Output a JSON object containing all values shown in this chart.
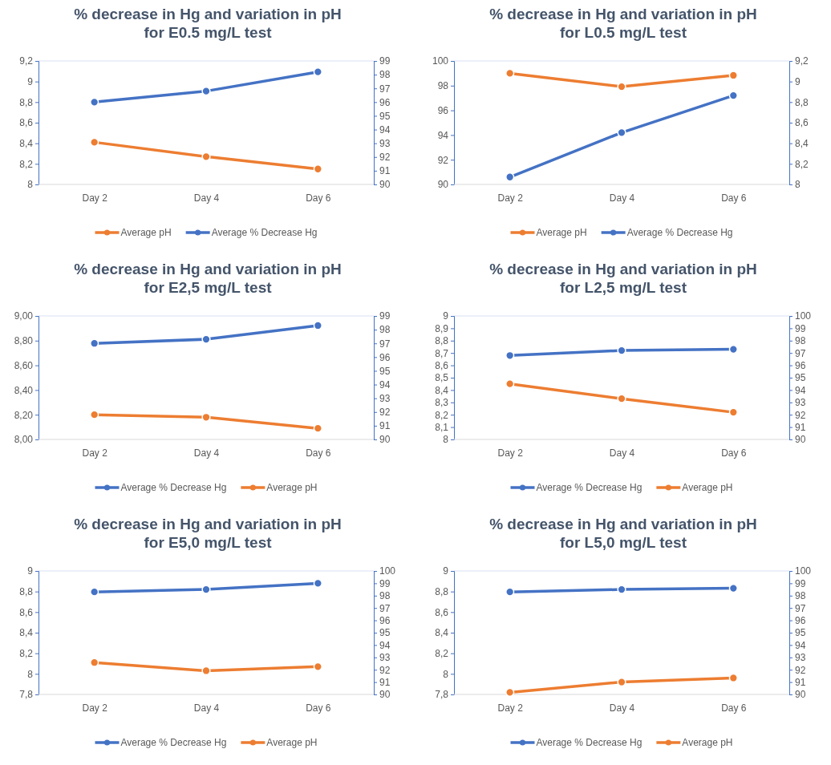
{
  "chart_data": [
    {
      "type": "line",
      "title": "% decrease in Hg and variation in pH\nfor E0.5 mg/L test",
      "categories": [
        "Day 2",
        "Day 4",
        "Day 6"
      ],
      "series": [
        {
          "name": "Average pH",
          "color": "#ed7d31",
          "values": [
            8.41,
            8.27,
            8.15
          ]
        },
        {
          "name": "Average % Decrease Hg",
          "color": "#4472c4",
          "axis": "y2",
          "values": [
            96.0,
            96.8,
            98.2
          ]
        }
      ],
      "ylim": [
        8,
        9.2
      ],
      "yticks": [
        8,
        {
          "value": 8.2,
          "label": "8,2"
        },
        {
          "value": 8.4,
          "label": "8,4"
        },
        {
          "value": 8.6,
          "label": "8,6"
        },
        {
          "value": 8.8,
          "label": "8,8"
        },
        9,
        {
          "value": 9.2,
          "label": "9,2"
        }
      ],
      "y2lim": [
        90,
        99
      ],
      "y2ticks": [
        90,
        91,
        92,
        93,
        94,
        95,
        96,
        97,
        98,
        99
      ],
      "legend": "bottom",
      "marker": "circle",
      "grid": false
    },
    {
      "type": "line",
      "title": "% decrease in Hg and variation in pH\nfor L0.5 mg/L test",
      "categories": [
        "Day 2",
        "Day 4",
        "Day 6"
      ],
      "series": [
        {
          "name": "Average pH",
          "color": "#ed7d31",
          "axis": "y2",
          "values": [
            9.08,
            8.95,
            9.06
          ]
        },
        {
          "name": "Average % Decrease Hg",
          "color": "#4472c4",
          "values": [
            90.6,
            94.2,
            97.2
          ]
        }
      ],
      "ylim": [
        90,
        100
      ],
      "yticks": [
        90,
        92,
        94,
        96,
        98,
        100
      ],
      "y2lim": [
        8,
        9.2
      ],
      "y2ticks": [
        8,
        {
          "value": 8.2,
          "label": "8,2"
        },
        {
          "value": 8.4,
          "label": "8,4"
        },
        {
          "value": 8.6,
          "label": "8,6"
        },
        {
          "value": 8.8,
          "label": "8,8"
        },
        9,
        {
          "value": 9.2,
          "label": "9,2"
        }
      ],
      "legend": "bottom",
      "marker": "circle",
      "grid": false
    },
    {
      "type": "line",
      "title": "% decrease in Hg and variation in pH\nfor E2,5 mg/L test",
      "categories": [
        "Day 2",
        "Day 4",
        "Day 6"
      ],
      "series": [
        {
          "name": "Average % Decrease Hg",
          "color": "#4472c4",
          "axis": "y2",
          "values": [
            97.0,
            97.3,
            98.3
          ]
        },
        {
          "name": "Average pH",
          "color": "#ed7d31",
          "values": [
            8.2,
            8.18,
            8.09
          ]
        }
      ],
      "ylim": [
        8,
        9
      ],
      "yticks": [
        {
          "value": 8,
          "label": "8,00"
        },
        {
          "value": 8.2,
          "label": "8,20"
        },
        {
          "value": 8.4,
          "label": "8,40"
        },
        {
          "value": 8.6,
          "label": "8,60"
        },
        {
          "value": 8.8,
          "label": "8,80"
        },
        {
          "value": 9,
          "label": "9,00"
        }
      ],
      "y2lim": [
        90,
        99
      ],
      "y2ticks": [
        90,
        91,
        92,
        93,
        94,
        95,
        96,
        97,
        98,
        99
      ],
      "legend": "bottom",
      "marker": "circle",
      "grid": false
    },
    {
      "type": "line",
      "title": "% decrease in Hg and variation in pH\nfor L2,5 mg/L test",
      "categories": [
        "Day 2",
        "Day 4",
        "Day 6"
      ],
      "series": [
        {
          "name": "Average % Decrease Hg",
          "color": "#4472c4",
          "axis": "y2",
          "values": [
            96.8,
            97.2,
            97.3
          ]
        },
        {
          "name": "Average pH",
          "color": "#ed7d31",
          "values": [
            8.45,
            8.33,
            8.22
          ]
        }
      ],
      "ylim": [
        8,
        9
      ],
      "yticks": [
        8,
        {
          "value": 8.1,
          "label": "8,1"
        },
        {
          "value": 8.2,
          "label": "8,2"
        },
        {
          "value": 8.3,
          "label": "8,3"
        },
        {
          "value": 8.4,
          "label": "8,4"
        },
        {
          "value": 8.5,
          "label": "8,5"
        },
        {
          "value": 8.6,
          "label": "8,6"
        },
        {
          "value": 8.7,
          "label": "8,7"
        },
        {
          "value": 8.8,
          "label": "8,8"
        },
        {
          "value": 8.9,
          "label": "8,9"
        },
        9
      ],
      "y2lim": [
        90,
        100
      ],
      "y2ticks": [
        90,
        91,
        92,
        93,
        94,
        95,
        96,
        97,
        98,
        99,
        100
      ],
      "legend": "bottom",
      "marker": "circle",
      "grid": false
    },
    {
      "type": "line",
      "title": "% decrease in Hg and variation in pH\nfor E5,0 mg/L test",
      "categories": [
        "Day 2",
        "Day 4",
        "Day 6"
      ],
      "series": [
        {
          "name": "Average % Decrease Hg",
          "color": "#4472c4",
          "axis": "y2",
          "values": [
            98.3,
            98.5,
            99.0
          ]
        },
        {
          "name": "Average pH",
          "color": "#ed7d31",
          "values": [
            8.11,
            8.03,
            8.07
          ]
        }
      ],
      "ylim": [
        7.8,
        9
      ],
      "yticks": [
        {
          "value": 7.8,
          "label": "7,8"
        },
        8,
        {
          "value": 8.2,
          "label": "8,2"
        },
        {
          "value": 8.4,
          "label": "8,4"
        },
        {
          "value": 8.6,
          "label": "8,6"
        },
        {
          "value": 8.8,
          "label": "8,8"
        },
        9
      ],
      "y2lim": [
        90,
        100
      ],
      "y2ticks": [
        90,
        91,
        92,
        93,
        94,
        95,
        96,
        97,
        98,
        99,
        100
      ],
      "legend": "bottom",
      "marker": "circle",
      "grid": false
    },
    {
      "type": "line",
      "title": "% decrease in Hg and variation in pH\nfor L5,0 mg/L test",
      "categories": [
        "Day 2",
        "Day 4",
        "Day 6"
      ],
      "series": [
        {
          "name": "Average % Decrease Hg",
          "color": "#4472c4",
          "axis": "y2",
          "values": [
            98.3,
            98.5,
            98.6
          ]
        },
        {
          "name": "Average pH",
          "color": "#ed7d31",
          "values": [
            7.82,
            7.92,
            7.96
          ]
        }
      ],
      "ylim": [
        7.8,
        9
      ],
      "yticks": [
        {
          "value": 7.8,
          "label": "7,8"
        },
        8,
        {
          "value": 8.2,
          "label": "8,2"
        },
        {
          "value": 8.4,
          "label": "8,4"
        },
        {
          "value": 8.6,
          "label": "8,6"
        },
        {
          "value": 8.8,
          "label": "8,8"
        },
        9
      ],
      "y2lim": [
        90,
        100
      ],
      "y2ticks": [
        90,
        91,
        92,
        93,
        94,
        95,
        96,
        97,
        98,
        99,
        100
      ],
      "legend": "bottom",
      "marker": "circle",
      "grid": false
    }
  ]
}
